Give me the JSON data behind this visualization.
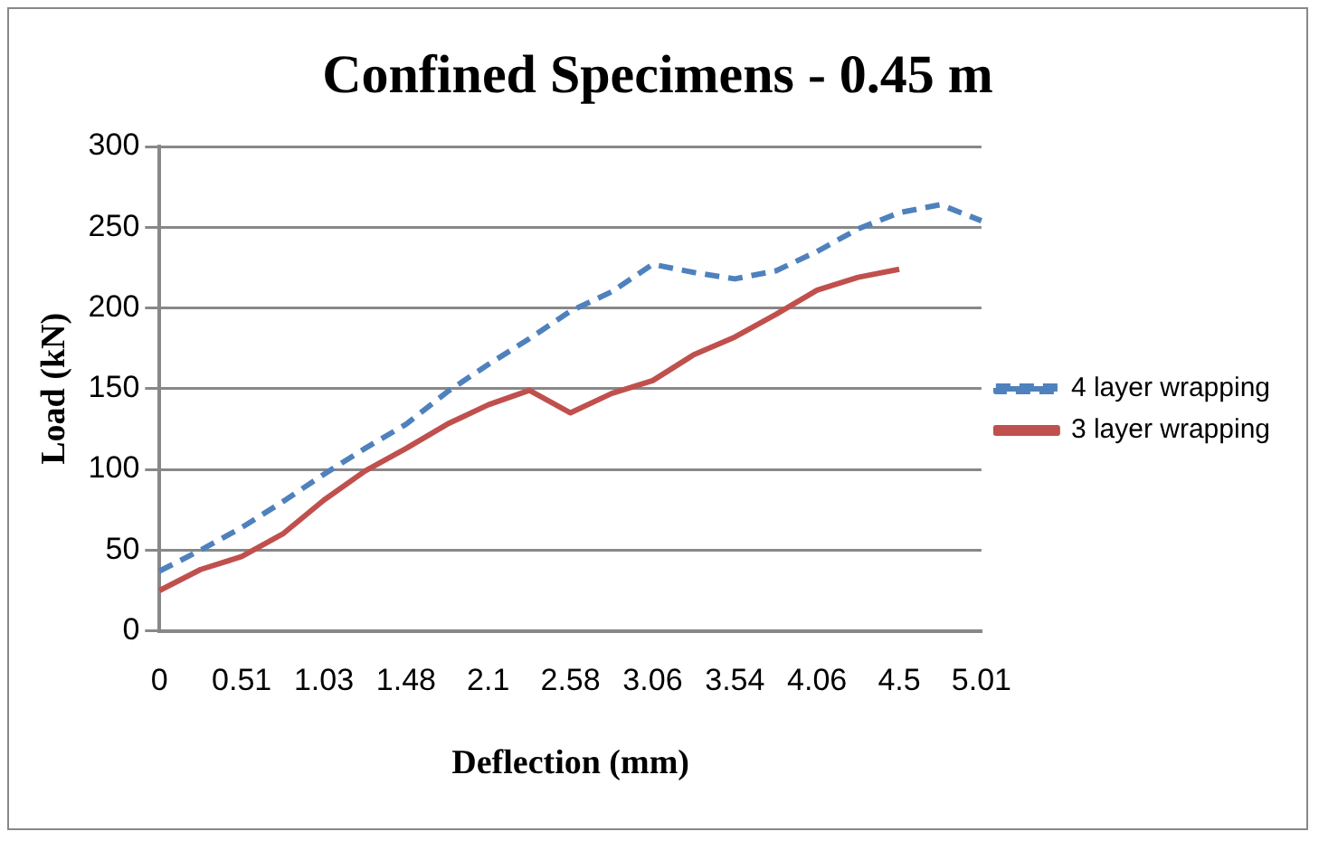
{
  "chart_data": {
    "type": "line",
    "title": "Confined Specimens - 0.45 m",
    "xlabel": "Deflection (mm)",
    "ylabel": "Load (kN)",
    "categories": [
      "0",
      null,
      "0.51",
      null,
      "1.03",
      null,
      "1.48",
      null,
      "2.1",
      null,
      "2.58",
      null,
      "3.06",
      null,
      "3.54",
      null,
      "4.06",
      null,
      "4.5",
      null,
      "5.01"
    ],
    "series": [
      {
        "name": "4 layer wrapping",
        "color": "#4f81bd",
        "line_style": "dashed",
        "values": [
          37,
          50,
          64,
          80,
          97,
          113,
          128,
          148,
          165,
          181,
          198,
          210,
          227,
          222,
          218,
          223,
          235,
          249,
          259,
          264,
          254
        ]
      },
      {
        "name": "3 layer wrapping",
        "color": "#c0504d",
        "line_style": "solid",
        "values": [
          25,
          38,
          46,
          60,
          81,
          99,
          113,
          128,
          140,
          149,
          135,
          147,
          155,
          171,
          182,
          196,
          211,
          219,
          224,
          null,
          null
        ]
      }
    ],
    "ylim": [
      0,
      300
    ],
    "yticks": [
      0,
      50,
      100,
      150,
      200,
      250,
      300
    ],
    "grid": "y",
    "legend": "right",
    "marker": "none"
  }
}
